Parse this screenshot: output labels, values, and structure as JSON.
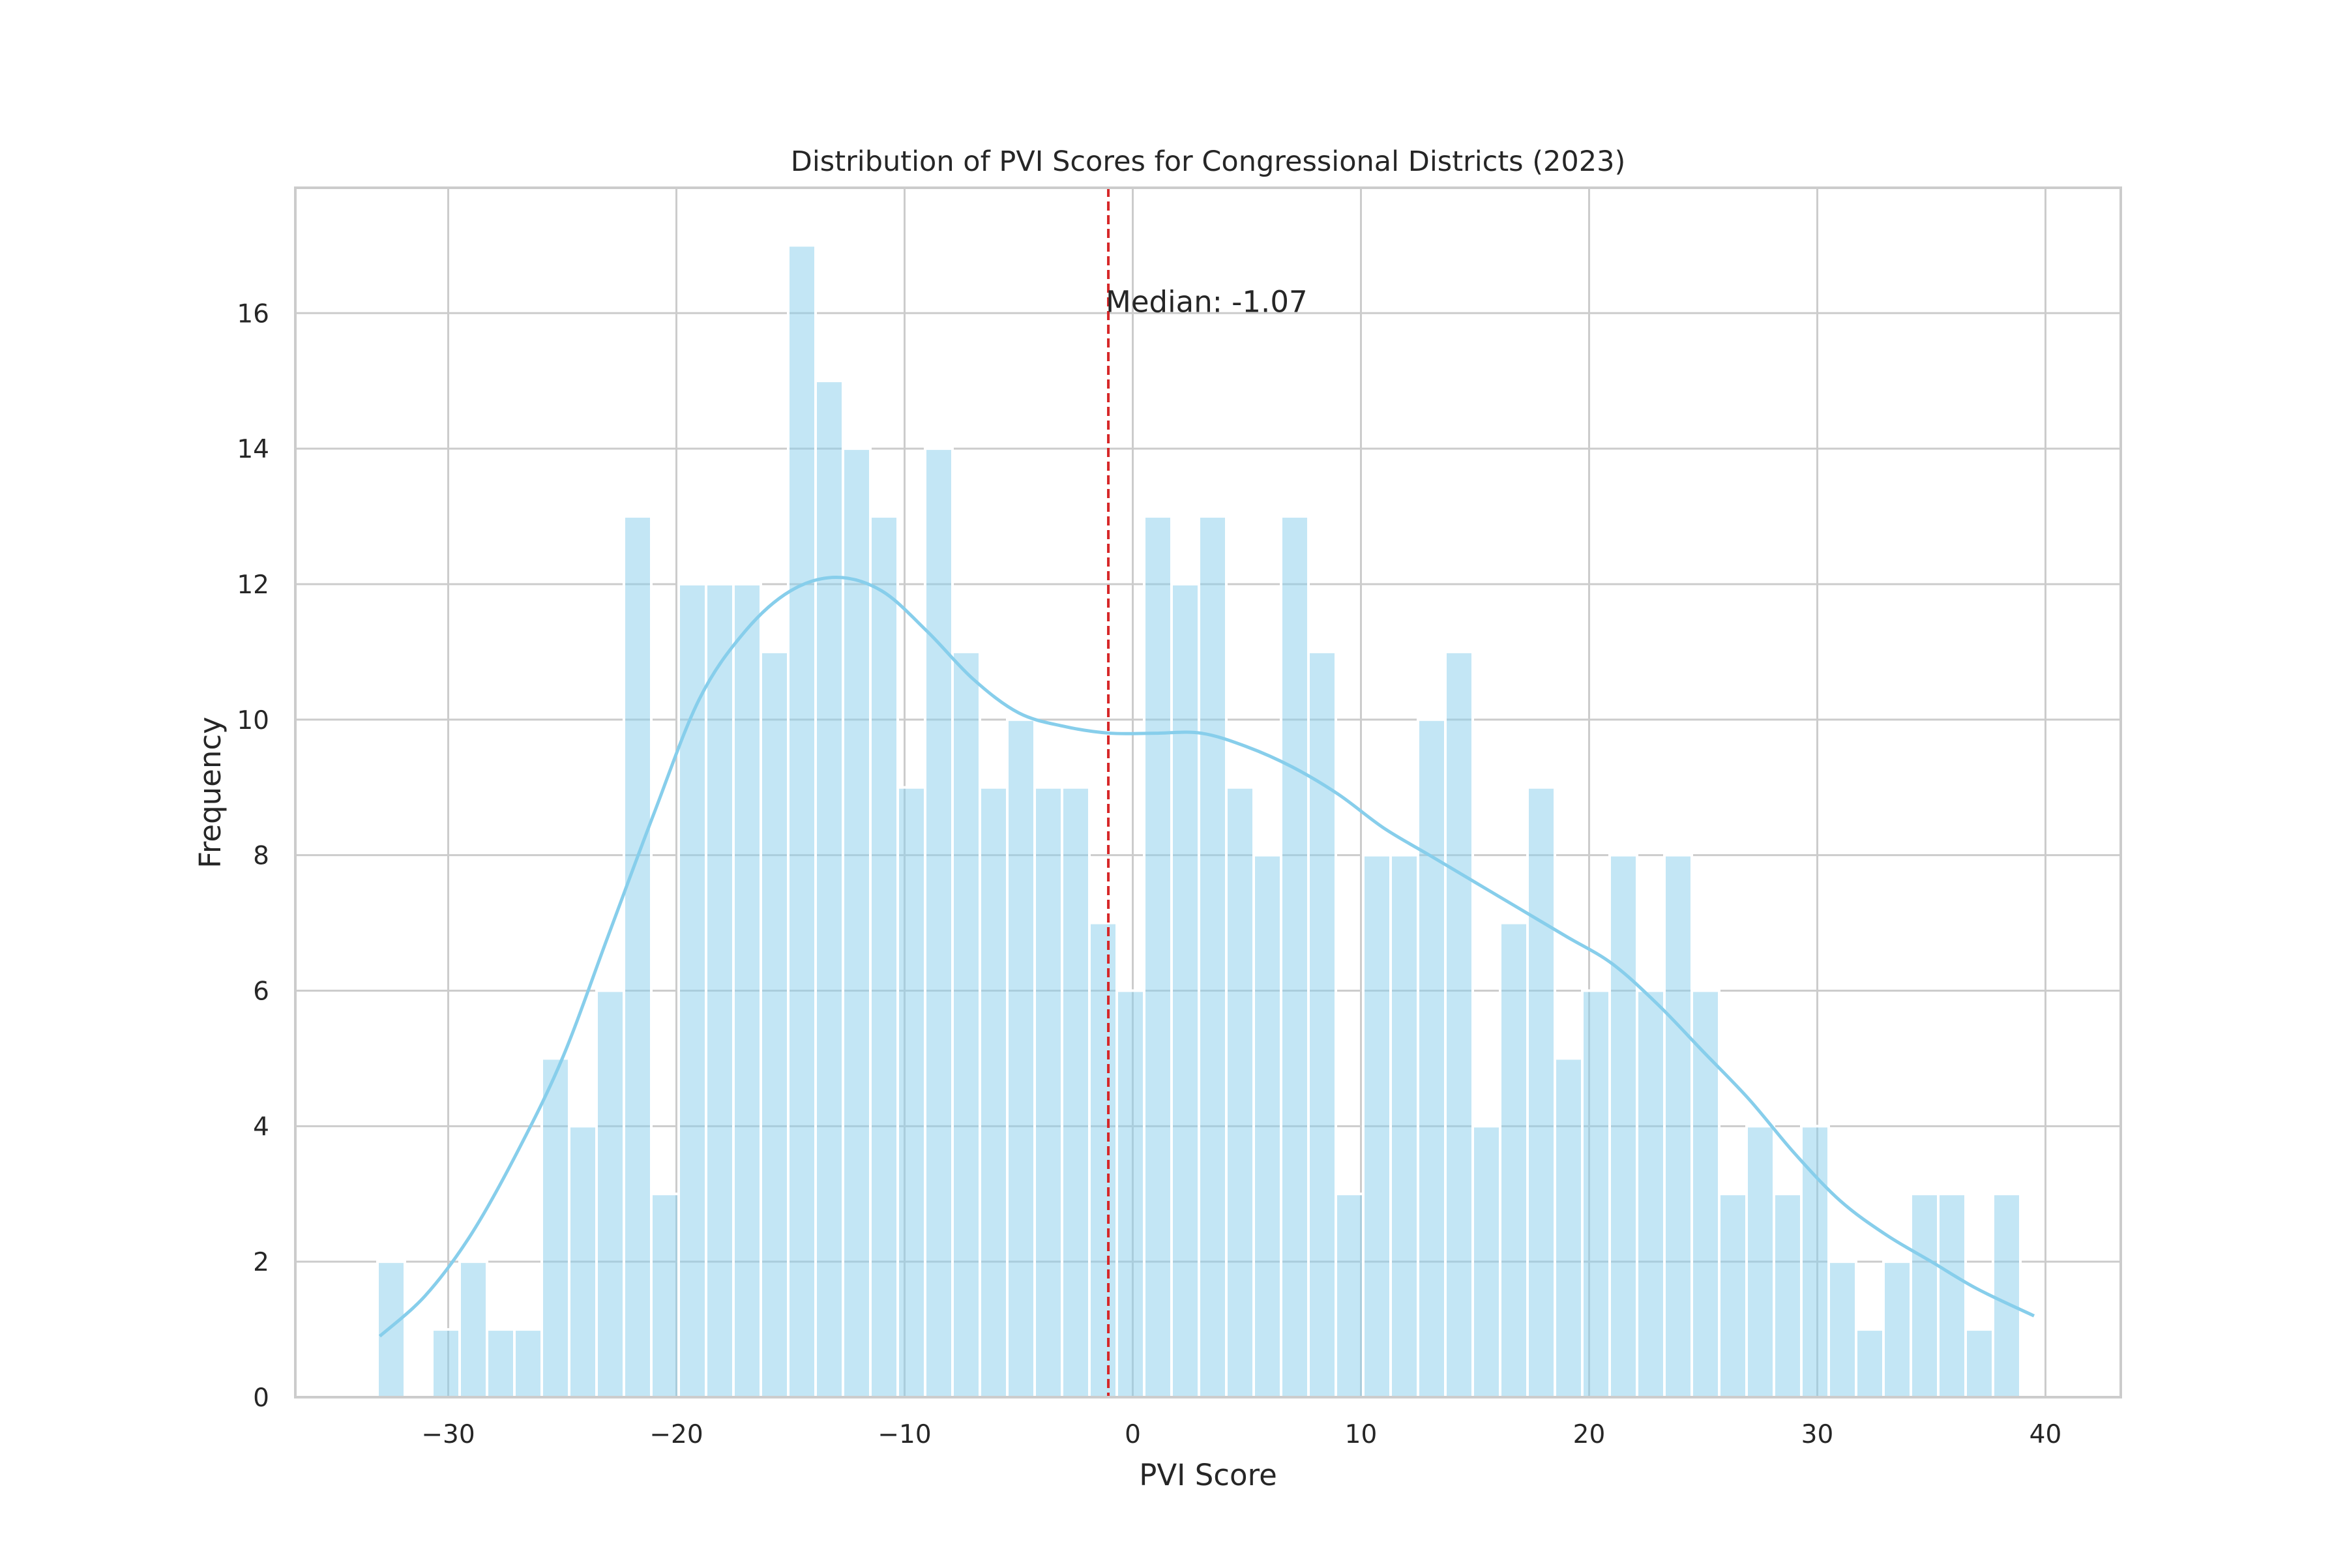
{
  "chart_data": {
    "type": "bar",
    "title": "Distribution of PVI Scores for Congressional Districts (2023)",
    "xlabel": "PVI Score",
    "ylabel": "Frequency",
    "xlim": [
      -36.7,
      43.3
    ],
    "ylim": [
      0,
      17.85
    ],
    "grid": true,
    "x_ticks": [
      -30,
      -20,
      -10,
      0,
      10,
      20,
      30,
      40
    ],
    "x_tick_labels": [
      "−30",
      "−20",
      "−10",
      "0",
      "10",
      "20",
      "30",
      "40"
    ],
    "y_ticks": [
      0,
      2,
      4,
      6,
      8,
      10,
      12,
      14,
      16
    ],
    "y_tick_labels": [
      "0",
      "2",
      "4",
      "6",
      "8",
      "10",
      "12",
      "14",
      "16"
    ],
    "bin_start": -33.1,
    "bin_width": 1.2,
    "values": [
      2,
      0,
      1,
      2,
      1,
      1,
      5,
      4,
      6,
      13,
      3,
      12,
      12,
      12,
      11,
      17,
      15,
      14,
      13,
      9,
      14,
      11,
      9,
      10,
      9,
      9,
      7,
      6,
      13,
      12,
      13,
      9,
      8,
      13,
      11,
      3,
      8,
      8,
      10,
      11,
      4,
      7,
      9,
      5,
      6,
      8,
      6,
      8,
      6,
      3,
      4,
      3,
      4,
      2,
      1,
      2,
      3,
      3,
      1,
      3
    ],
    "kde": {
      "x": [
        -33.0,
        -31,
        -29,
        -27,
        -25,
        -23,
        -21,
        -19,
        -17,
        -15,
        -13,
        -11,
        -9,
        -7,
        -5,
        -3,
        -1,
        1,
        3,
        5,
        7,
        9,
        11,
        13,
        15,
        17,
        19,
        21,
        23,
        25,
        27,
        29,
        31,
        33,
        35,
        37,
        39.5
      ],
      "y": [
        0.9,
        1.5,
        2.4,
        3.6,
        5.0,
        6.8,
        8.6,
        10.3,
        11.3,
        11.9,
        12.1,
        11.9,
        11.3,
        10.6,
        10.1,
        9.9,
        9.8,
        9.8,
        9.8,
        9.6,
        9.3,
        8.9,
        8.4,
        8.0,
        7.6,
        7.2,
        6.8,
        6.4,
        5.8,
        5.1,
        4.4,
        3.6,
        2.9,
        2.4,
        2.0,
        1.6,
        1.2
      ]
    },
    "median": -1.07,
    "median_label": "Median: -1.07",
    "colors": {
      "bar_fill": "#87ceeb",
      "bar_opacity": 0.5,
      "bar_edge": "#ffffff",
      "kde_line": "#87ceeb",
      "median_line": "#d62728",
      "grid": "#cccccc",
      "frame": "#cccccc"
    }
  }
}
